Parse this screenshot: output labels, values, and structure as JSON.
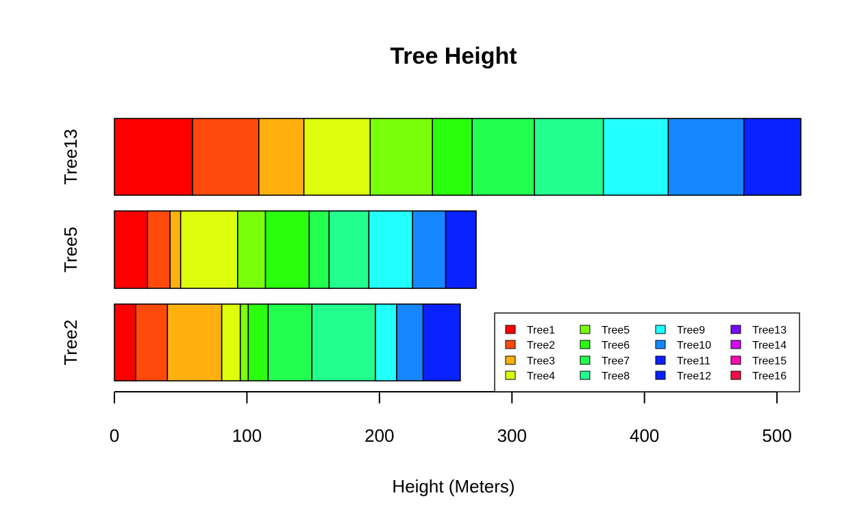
{
  "chart_data": {
    "type": "bar",
    "orientation": "horizontal",
    "stacked": true,
    "title": "Tree Height",
    "xlabel": "Height (Meters)",
    "ylabel": "",
    "xlim": [
      0,
      517
    ],
    "xticks": [
      0,
      100,
      200,
      300,
      400,
      500
    ],
    "xtick_labels": [
      "0",
      "100",
      "200",
      "300",
      "400",
      "500"
    ],
    "grid": false,
    "legend_position": "bottom-right",
    "categories": [
      "Tree2",
      "Tree5",
      "Tree13"
    ],
    "series": [
      {
        "name": "Tree1",
        "color": "#FF0000",
        "values": [
          16,
          25,
          59
        ]
      },
      {
        "name": "Tree2",
        "color": "#FF4A0C",
        "values": [
          24,
          17,
          50
        ]
      },
      {
        "name": "Tree3",
        "color": "#FFB00E",
        "values": [
          41,
          8,
          34
        ]
      },
      {
        "name": "Tree4",
        "color": "#DDFF0D",
        "values": [
          14,
          43,
          50
        ]
      },
      {
        "name": "Tree5",
        "color": "#7AFF0D",
        "values": [
          6,
          21,
          47
        ]
      },
      {
        "name": "Tree6",
        "color": "#2AFF0D",
        "values": [
          15,
          33,
          30
        ]
      },
      {
        "name": "Tree7",
        "color": "#22FF4E",
        "values": [
          33,
          15,
          47
        ]
      },
      {
        "name": "Tree8",
        "color": "#22FF8E",
        "values": [
          48,
          30,
          52
        ]
      },
      {
        "name": "Tree9",
        "color": "#22FFFF",
        "values": [
          16,
          33,
          49
        ]
      },
      {
        "name": "Tree10",
        "color": "#1688FF",
        "values": [
          20,
          25,
          57
        ]
      },
      {
        "name": "Tree11",
        "color": "#0A22FF",
        "values": [
          0,
          0,
          0
        ]
      },
      {
        "name": "Tree12",
        "color": "#0A22FF",
        "values": [
          28,
          23,
          43
        ]
      },
      {
        "name": "Tree13",
        "color": "#7A0AFF",
        "values": [
          0,
          0,
          0
        ]
      },
      {
        "name": "Tree14",
        "color": "#D40AFF",
        "values": [
          0,
          0,
          0
        ]
      },
      {
        "name": "Tree15",
        "color": "#FF0AB0",
        "values": [
          0,
          0,
          0
        ]
      },
      {
        "name": "Tree16",
        "color": "#FF0A4A",
        "values": [
          0,
          0,
          0
        ]
      }
    ]
  }
}
